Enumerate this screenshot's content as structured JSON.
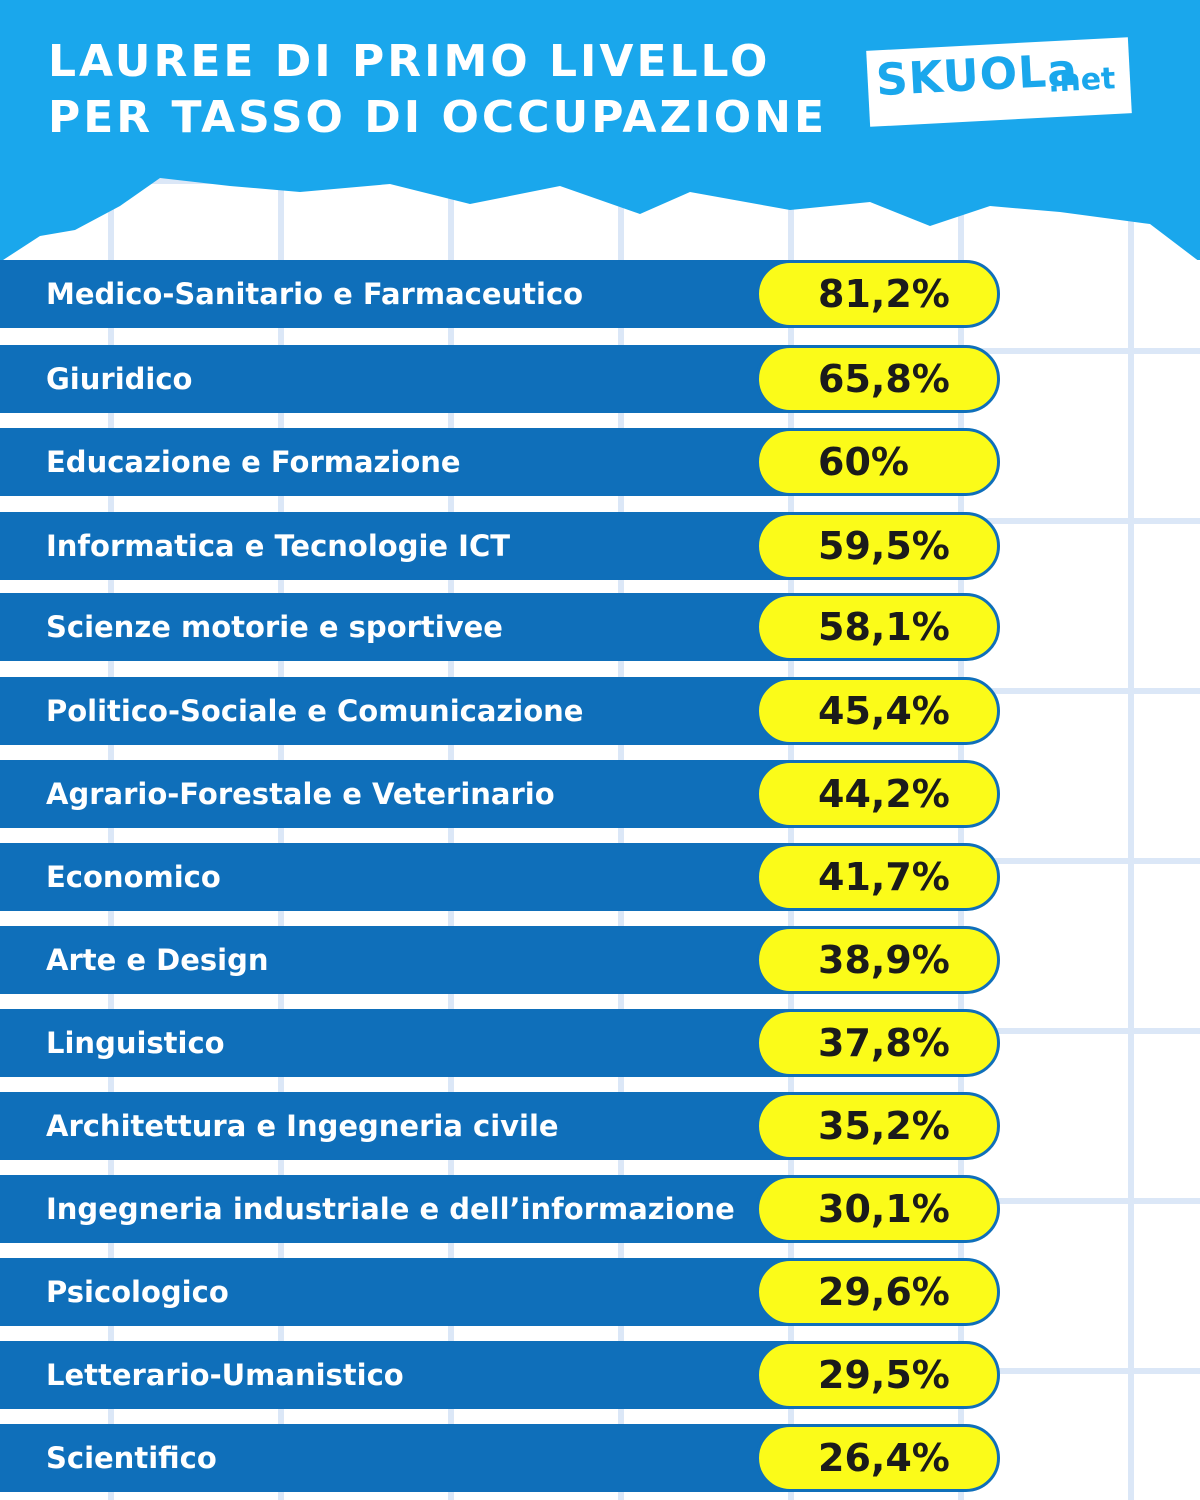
{
  "title": {
    "line1": "LAUREE DI PRIMO LIVELLO",
    "line2": "PER TASSO DI OCCUPAZIONE"
  },
  "logo": {
    "main": "SKUOLa",
    "suffix": ".net"
  },
  "colors": {
    "header": "#1aa7ec",
    "bar": "#0f6fba",
    "pill": "#fbfb19",
    "grid": "#dbe7f7"
  },
  "chart_data": {
    "type": "bar",
    "title": "LAUREE DI PRIMO LIVELLO PER TASSO DI OCCUPAZIONE",
    "unit": "%",
    "categories": [
      "Medico-Sanitario e Farmaceutico",
      "Giuridico",
      "Educazione e Formazione",
      "Informatica e Tecnologie ICT",
      "Scienze motorie e sportivee",
      "Politico-Sociale e Comunicazione",
      "Agrario-Forestale e Veterinario",
      "Economico",
      "Arte e Design",
      "Linguistico",
      "Architettura e Ingegneria civile",
      "Ingegneria industriale e dell’informazione",
      "Psicologico",
      "Letterario-Umanistico",
      "Scientifico"
    ],
    "values": [
      81.2,
      65.8,
      60,
      59.5,
      58.1,
      45.4,
      44.2,
      41.7,
      38.9,
      37.8,
      35.2,
      30.1,
      29.6,
      29.5,
      26.4
    ],
    "value_labels": [
      "81,2%",
      "65,8%",
      "60%",
      "59,5%",
      "58,1%",
      "45,4%",
      "44,2%",
      "41,7%",
      "38,9%",
      "37,8%",
      "35,2%",
      "30,1%",
      "29,6%",
      "29,5%",
      "26,4%"
    ]
  }
}
